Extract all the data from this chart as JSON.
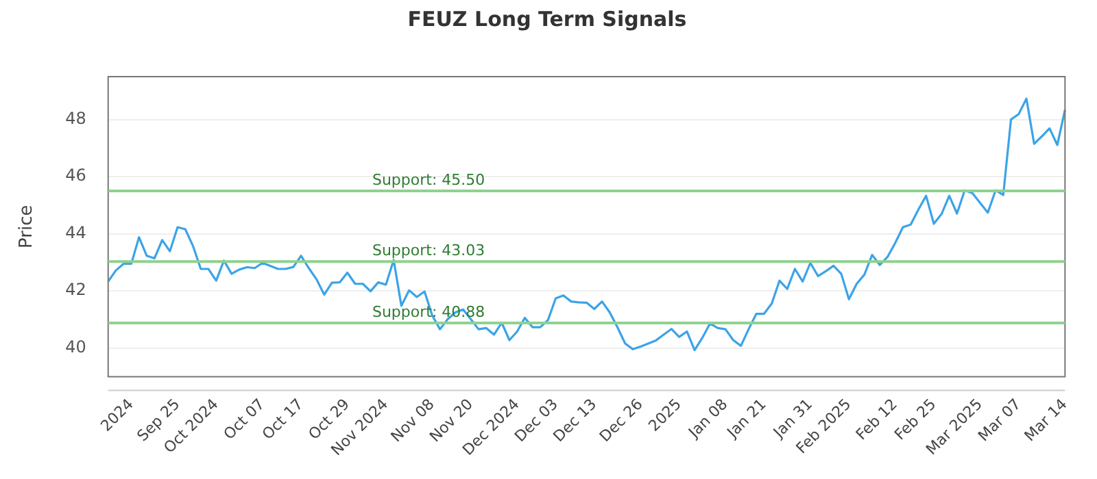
{
  "chart_data": {
    "type": "line",
    "title": "FEUZ Long Term Signals",
    "ylabel": "Price",
    "categories": [
      null,
      null,
      null,
      "2024",
      null,
      null,
      null,
      null,
      null,
      "Sep 25",
      null,
      null,
      null,
      null,
      "Oct 2024",
      null,
      null,
      null,
      null,
      null,
      "Oct 07",
      null,
      null,
      null,
      null,
      "Oct 17",
      null,
      null,
      null,
      null,
      null,
      "Oct 29",
      null,
      null,
      null,
      null,
      "Nov 2024",
      null,
      null,
      null,
      null,
      null,
      "Nov 08",
      null,
      null,
      null,
      null,
      "Nov 20",
      null,
      null,
      null,
      null,
      null,
      "Dec 2024",
      null,
      null,
      null,
      null,
      "Dec 03",
      null,
      null,
      null,
      null,
      "Dec 13",
      null,
      null,
      null,
      null,
      null,
      "Dec 26",
      null,
      null,
      null,
      null,
      "2025",
      null,
      null,
      null,
      null,
      null,
      "Jan 08",
      null,
      null,
      null,
      null,
      "Jan 21",
      null,
      null,
      null,
      null,
      null,
      "Jan 31",
      null,
      null,
      null,
      null,
      "Feb 2025",
      null,
      null,
      null,
      null,
      null,
      "Feb 12",
      null,
      null,
      null,
      null,
      "Feb 25",
      null,
      null,
      null,
      null,
      null,
      "Mar 2025",
      null,
      null,
      null,
      null,
      "Mar 07",
      null,
      null,
      null,
      null,
      null,
      "Mar 14"
    ],
    "series": [
      {
        "color": "#3ca3e8",
        "values": [
          42.33,
          42.72,
          42.95,
          42.95,
          43.88,
          43.23,
          43.14,
          43.78,
          43.39,
          44.23,
          44.16,
          43.57,
          42.77,
          42.77,
          42.36,
          43.06,
          42.6,
          42.75,
          42.83,
          42.8,
          42.98,
          42.88,
          42.77,
          42.77,
          42.84,
          43.23,
          42.8,
          42.41,
          41.87,
          42.29,
          42.3,
          42.64,
          42.25,
          42.25,
          41.99,
          42.3,
          42.22,
          43.08,
          41.48,
          42.02,
          41.79,
          41.98,
          41.14,
          40.66,
          41.01,
          41.25,
          41.35,
          41.01,
          40.66,
          40.7,
          40.47,
          40.89,
          40.28,
          40.58,
          41.06,
          40.73,
          40.73,
          40.98,
          41.74,
          41.84,
          41.63,
          41.6,
          41.59,
          41.37,
          41.63,
          41.25,
          40.73,
          40.16,
          39.96,
          40.05,
          40.16,
          40.27,
          40.47,
          40.67,
          40.39,
          40.58,
          39.93,
          40.36,
          40.86,
          40.7,
          40.66,
          40.28,
          40.08,
          40.66,
          41.2,
          41.2,
          41.56,
          42.36,
          42.07,
          42.77,
          42.33,
          42.98,
          42.52,
          42.69,
          42.88,
          42.6,
          41.71,
          42.25,
          42.57,
          43.26,
          42.91,
          43.19,
          43.68,
          44.23,
          44.32,
          44.85,
          45.33,
          44.35,
          44.69,
          45.33,
          44.71,
          45.52,
          45.42,
          45.08,
          44.74,
          45.52,
          45.36,
          48.0,
          48.19,
          48.73,
          47.15,
          47.41,
          47.69,
          47.11,
          48.34
        ]
      }
    ],
    "ylim": [
      39,
      49.5
    ],
    "yticks": [
      40,
      42,
      44,
      46,
      48
    ],
    "grid": "y",
    "marker": "none",
    "line_style": "solid",
    "ref_lines": [
      {
        "axis": "y",
        "value": 45.5,
        "label": "Support: 45.50",
        "color": "#8fd18f"
      },
      {
        "axis": "y",
        "value": 43.03,
        "label": "Support: 43.03",
        "color": "#8fd18f"
      },
      {
        "axis": "y",
        "value": 40.88,
        "label": "Support: 40.88",
        "color": "#8fd18f"
      }
    ]
  }
}
